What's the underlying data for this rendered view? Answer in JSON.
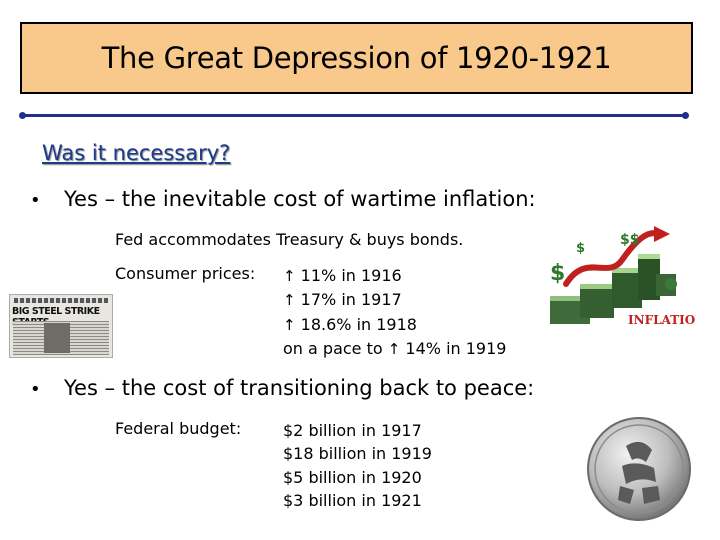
{
  "title": "The Great Depression of 1920-1921",
  "subtitle": "Was it necessary?",
  "bullets": [
    {
      "text": "Yes – the inevitable cost of wartime inflation:",
      "fed_line": "Fed accommodates Treasury & buys bonds.",
      "label": "Consumer prices:",
      "lines": [
        {
          "arrow": "↑",
          "text": " 11% in 1916"
        },
        {
          "arrow": "↑",
          "text": " 17% in 1917"
        },
        {
          "arrow": "↑",
          "text": " 18.6% in 1918"
        },
        {
          "prefix": "on a pace to ",
          "arrow": "↑",
          "text": " 14% in 1919"
        }
      ]
    },
    {
      "text": "Yes – the cost of transitioning back to peace:",
      "label": "Federal budget:",
      "lines": [
        "$2 billion in 1917",
        "$18 billion in 1919",
        "$5 billion in 1920",
        "$3 billion in 1921"
      ]
    }
  ],
  "images": {
    "newspaper": {
      "headline": "BIG STEEL STRIKE STARTS"
    },
    "inflation": {
      "label": "INFLATION",
      "symbols": [
        "$",
        "$",
        "$$"
      ]
    },
    "coin": {
      "icon": "coin-icon"
    }
  },
  "colors": {
    "title_bg": "#f8c98a",
    "rule": "#1f2f8c",
    "subtitle": "#1f3a8a",
    "inflation_text": "#c0201e"
  }
}
